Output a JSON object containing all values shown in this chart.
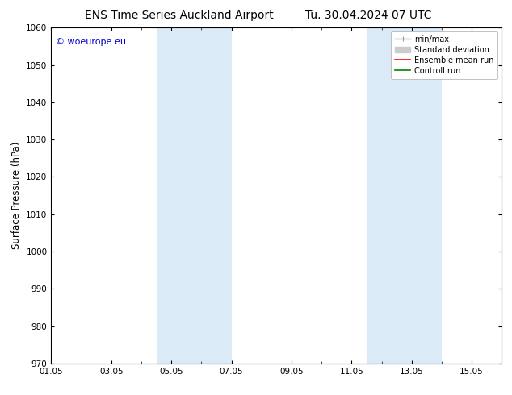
{
  "title1": "ENS Time Series Auckland Airport",
  "title2": "Tu. 30.04.2024 07 UTC",
  "ylabel": "Surface Pressure (hPa)",
  "ylim": [
    970,
    1060
  ],
  "yticks": [
    970,
    980,
    990,
    1000,
    1010,
    1020,
    1030,
    1040,
    1050,
    1060
  ],
  "xlim": [
    0,
    15
  ],
  "xtick_labels": [
    "01.05",
    "03.05",
    "05.05",
    "07.05",
    "09.05",
    "11.05",
    "13.05",
    "15.05"
  ],
  "xtick_positions": [
    0,
    2,
    4,
    6,
    8,
    10,
    12,
    14
  ],
  "shade_bands": [
    {
      "start": 3.5,
      "end": 6.0
    },
    {
      "start": 10.5,
      "end": 13.0
    }
  ],
  "shade_color": "#daeaf7",
  "watermark": "© woeurope.eu",
  "watermark_color": "#0000cc",
  "legend_items": [
    {
      "label": "min/max",
      "color": "#999999",
      "lw": 1.0
    },
    {
      "label": "Standard deviation",
      "color": "#cccccc",
      "lw": 5
    },
    {
      "label": "Ensemble mean run",
      "color": "red",
      "lw": 1.2
    },
    {
      "label": "Controll run",
      "color": "green",
      "lw": 1.2
    }
  ],
  "background_color": "#ffffff",
  "title_fontsize": 10,
  "tick_fontsize": 7.5,
  "label_fontsize": 8.5,
  "watermark_fontsize": 8,
  "legend_fontsize": 7
}
